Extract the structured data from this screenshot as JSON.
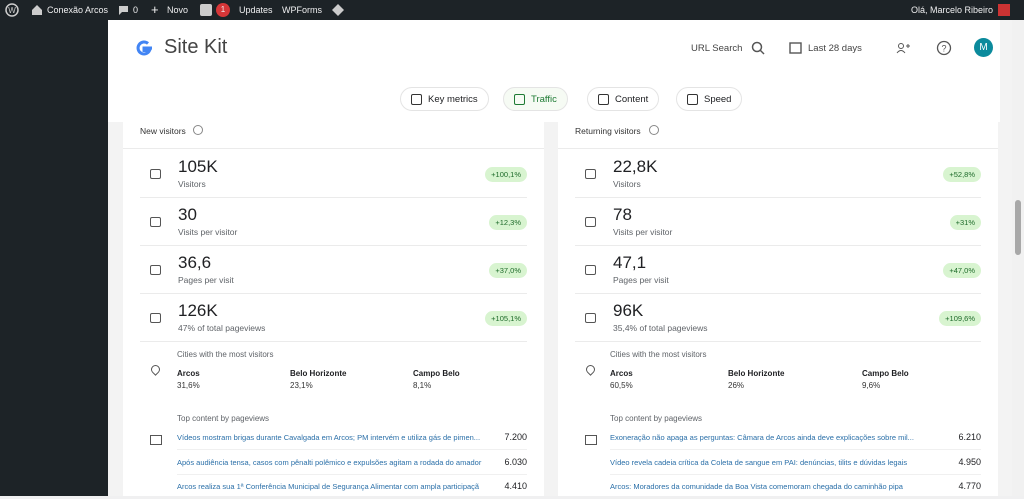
{
  "admin_bar": {
    "site": "Conexão Arcos",
    "comments": "0",
    "new": "Novo",
    "updates_count": "1",
    "updates": "Updates",
    "wpforms": "WPForms",
    "greeting": "Olá, Marcelo Ribeiro"
  },
  "header": {
    "logo": "Site Kit",
    "url_search": "URL Search",
    "date_range": "Last 28 days",
    "avatar": "M"
  },
  "tabs": [
    "Key metrics",
    "Traffic",
    "Content",
    "Speed"
  ],
  "panels": [
    {
      "title": "New visitors",
      "metrics": [
        {
          "value": "105K",
          "label": "Visitors",
          "change": "+100,1%"
        },
        {
          "value": "30",
          "label": "Visits per visitor",
          "change": "+12,3%"
        },
        {
          "value": "36,6",
          "label": "Pages per visit",
          "change": "+37,0%"
        },
        {
          "value": "126K",
          "label": "47% of total pageviews",
          "change": "+105,1%"
        }
      ],
      "cities_title": "Cities with the most visitors",
      "cities": [
        {
          "name": "Arcos",
          "share": "31,6%"
        },
        {
          "name": "Belo Horizonte",
          "share": "23,1%"
        },
        {
          "name": "Campo Belo",
          "share": "8,1%"
        }
      ],
      "content_title": "Top content by pageviews",
      "pages": [
        {
          "title": "Vídeos mostram brigas durante Cavalgada em Arcos; PM intervém e utiliza gás de pimen...",
          "views": "7.200"
        },
        {
          "title": "Após audiência tensa, casos com pênalti polêmico e expulsões agitam a rodada do amador",
          "views": "6.030"
        },
        {
          "title": "Arcos realiza sua 1ª Conferência Municipal de Segurança Alimentar com ampla participaçã",
          "views": "4.410"
        }
      ]
    },
    {
      "title": "Returning visitors",
      "metrics": [
        {
          "value": "22,8K",
          "label": "Visitors",
          "change": "+52,8%"
        },
        {
          "value": "78",
          "label": "Visits per visitor",
          "change": "+31%"
        },
        {
          "value": "47,1",
          "label": "Pages per visit",
          "change": "+47,0%"
        },
        {
          "value": "96K",
          "label": "35,4% of total pageviews",
          "change": "+109,6%"
        }
      ],
      "cities_title": "Cities with the most visitors",
      "cities": [
        {
          "name": "Arcos",
          "share": "60,5%"
        },
        {
          "name": "Belo Horizonte",
          "share": "26%"
        },
        {
          "name": "Campo Belo",
          "share": "9,6%"
        }
      ],
      "content_title": "Top content by pageviews",
      "pages": [
        {
          "title": "Exoneração não apaga as perguntas: Câmara de Arcos ainda deve explicações sobre mil...",
          "views": "6.210"
        },
        {
          "title": "Vídeo revela cadeia crítica da Coleta de sangue em PAI: denúncias, tilits e dúvidas legais",
          "views": "4.950"
        },
        {
          "title": "Arcos: Moradores da comunidade da Boa Vista comemoram chegada do caminhão pipa",
          "views": "4.770"
        }
      ]
    }
  ]
}
